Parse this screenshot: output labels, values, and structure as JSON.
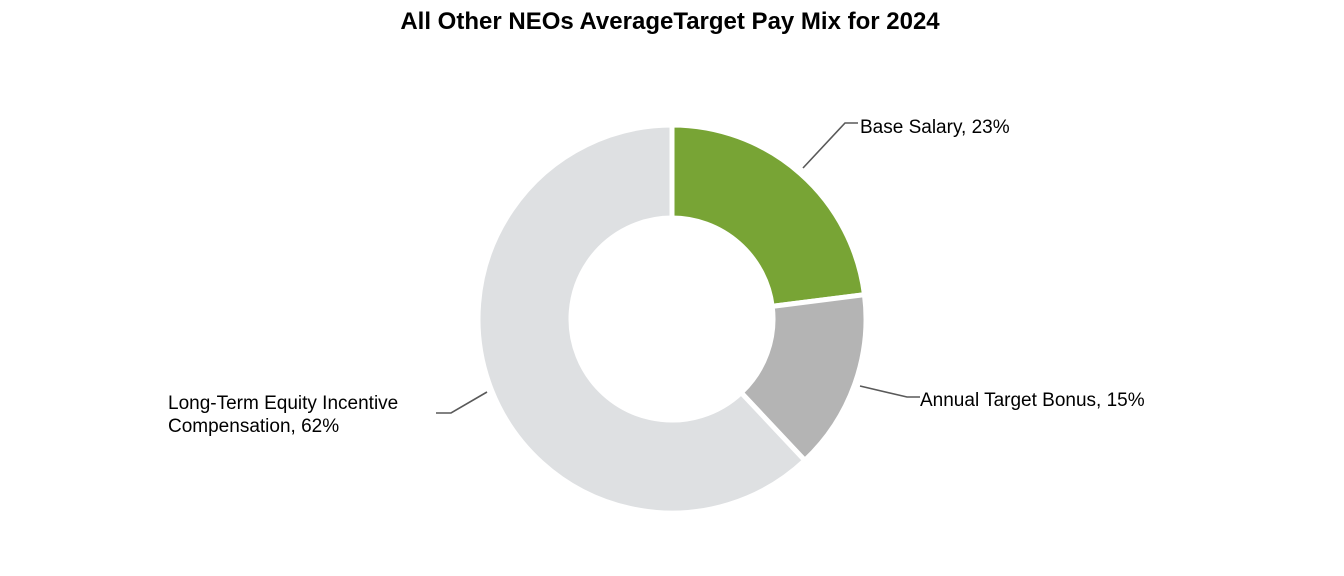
{
  "chart_data": {
    "type": "pie",
    "variant": "donut",
    "title": "All Other NEOs AverageTarget Pay Mix for 2024",
    "legend": "none",
    "slices": [
      {
        "label": "Base Salary",
        "value": 23,
        "value_label": "23%",
        "display_lines": [
          "Base Salary, 23%"
        ],
        "color": "#78a435"
      },
      {
        "label": "Annual Target Bonus",
        "value": 15,
        "value_label": "15%",
        "display_lines": [
          "Annual Target Bonus, 15%"
        ],
        "color": "#b4b4b4"
      },
      {
        "label": "Long-Term Equity Incentive Compensation",
        "value": 62,
        "value_label": "62%",
        "display_lines": [
          "Long-Term Equity Incentive",
          "Compensation, 62%"
        ],
        "color": "#dee0e2"
      }
    ]
  }
}
